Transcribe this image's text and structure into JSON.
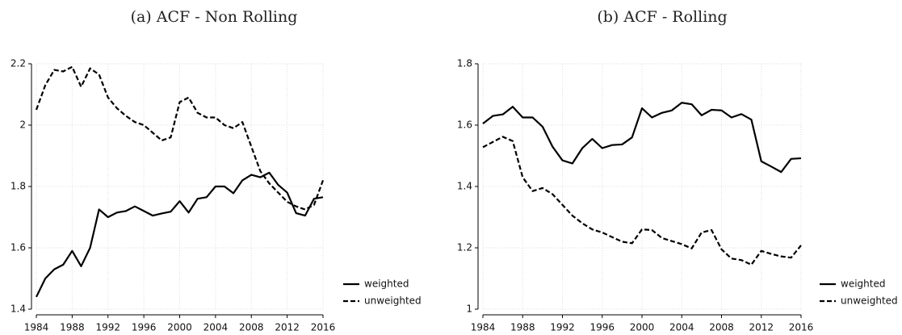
{
  "chart_data": [
    {
      "type": "line",
      "title": "(a) ACF - Non Rolling",
      "x": [
        1984,
        1985,
        1986,
        1987,
        1988,
        1989,
        1990,
        1991,
        1992,
        1993,
        1994,
        1995,
        1996,
        1997,
        1998,
        1999,
        2000,
        2001,
        2002,
        2003,
        2004,
        2005,
        2006,
        2007,
        2008,
        2009,
        2010,
        2011,
        2012,
        2013,
        2014,
        2015,
        2016
      ],
      "series": [
        {
          "name": "weighted",
          "color": "#000000",
          "dashed": false,
          "values": [
            1.44,
            1.5,
            1.53,
            1.545,
            1.59,
            1.54,
            1.6,
            1.725,
            1.7,
            1.715,
            1.72,
            1.735,
            1.72,
            1.705,
            1.712,
            1.718,
            1.752,
            1.715,
            1.76,
            1.765,
            1.8,
            1.8,
            1.778,
            1.82,
            1.838,
            1.83,
            1.845,
            1.805,
            1.78,
            1.713,
            1.705,
            1.76,
            1.765
          ]
        },
        {
          "name": "unweighted",
          "color": "#000000",
          "dashed": true,
          "values": [
            2.05,
            2.13,
            2.18,
            2.175,
            2.19,
            2.125,
            2.185,
            2.165,
            2.09,
            2.055,
            2.03,
            2.01,
            2.0,
            1.975,
            1.95,
            1.96,
            2.075,
            2.09,
            2.04,
            2.025,
            2.025,
            2.0,
            1.99,
            2.01,
            1.93,
            1.85,
            1.81,
            1.78,
            1.75,
            1.735,
            1.725,
            1.74,
            1.82
          ]
        }
      ],
      "xlim": [
        1984,
        2016
      ],
      "xticks": [
        1984,
        1988,
        1992,
        1996,
        2000,
        2004,
        2008,
        2012,
        2016
      ],
      "ylim": [
        1.4,
        2.2
      ],
      "yticks": [
        1.4,
        1.6,
        1.8,
        2,
        2.2
      ],
      "grid": true,
      "legend": "right"
    },
    {
      "type": "line",
      "title": "(b) ACF - Rolling",
      "x": [
        1984,
        1985,
        1986,
        1987,
        1988,
        1989,
        1990,
        1991,
        1992,
        1993,
        1994,
        1995,
        1996,
        1997,
        1998,
        1999,
        2000,
        2001,
        2002,
        2003,
        2004,
        2005,
        2006,
        2007,
        2008,
        2009,
        2010,
        2011,
        2012,
        2013,
        2014,
        2015,
        2016
      ],
      "series": [
        {
          "name": "weighted",
          "color": "#000000",
          "dashed": false,
          "values": [
            1.605,
            1.63,
            1.635,
            1.66,
            1.625,
            1.625,
            1.595,
            1.53,
            1.485,
            1.475,
            1.525,
            1.555,
            1.525,
            1.535,
            1.537,
            1.56,
            1.655,
            1.625,
            1.64,
            1.648,
            1.673,
            1.668,
            1.632,
            1.65,
            1.648,
            1.625,
            1.636,
            1.618,
            1.482,
            1.465,
            1.447,
            1.49,
            1.492
          ]
        },
        {
          "name": "unweighted",
          "color": "#000000",
          "dashed": true,
          "values": [
            1.528,
            1.545,
            1.562,
            1.548,
            1.43,
            1.385,
            1.395,
            1.375,
            1.34,
            1.305,
            1.28,
            1.26,
            1.25,
            1.235,
            1.22,
            1.215,
            1.26,
            1.258,
            1.232,
            1.222,
            1.212,
            1.198,
            1.25,
            1.258,
            1.195,
            1.165,
            1.16,
            1.145,
            1.19,
            1.18,
            1.172,
            1.168,
            1.208
          ]
        }
      ],
      "xlim": [
        1984,
        2016
      ],
      "xticks": [
        1984,
        1988,
        1992,
        1996,
        2000,
        2004,
        2008,
        2012,
        2016
      ],
      "ylim": [
        1,
        1.8
      ],
      "yticks": [
        1,
        1.2,
        1.4,
        1.6,
        1.8
      ],
      "grid": true,
      "legend": "right"
    }
  ]
}
